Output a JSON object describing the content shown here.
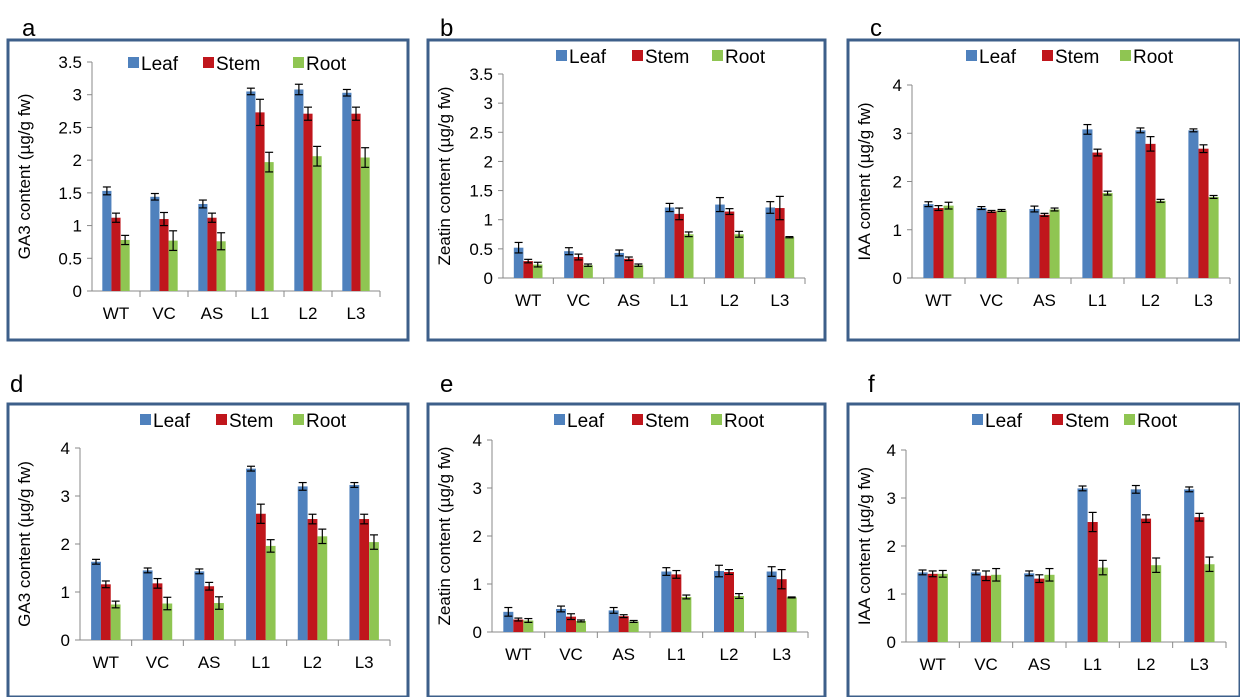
{
  "colors": {
    "Leaf": "#4f81bd",
    "Stem": "#c0161c",
    "Root": "#8fc552",
    "frame": "#3d5f8a"
  },
  "chart_data": [
    {
      "panel": "a",
      "type": "bar",
      "categories": [
        "WT",
        "VC",
        "AS",
        "L1",
        "L2",
        "L3"
      ],
      "ylabel": "GA3  content (µg/g fw)",
      "ylim": [
        0,
        3.5
      ],
      "yticks": [
        "0",
        "0.5",
        "1",
        "1.5",
        "2",
        "2.5",
        "3",
        "3.5"
      ],
      "legend": "top",
      "series": [
        {
          "name": "Leaf",
          "values": [
            1.53,
            1.44,
            1.33,
            3.05,
            3.08,
            3.03
          ],
          "errors": [
            0.06,
            0.05,
            0.06,
            0.05,
            0.08,
            0.05
          ]
        },
        {
          "name": "Stem",
          "values": [
            1.12,
            1.1,
            1.12,
            2.73,
            2.71,
            2.71
          ],
          "errors": [
            0.07,
            0.1,
            0.07,
            0.2,
            0.1,
            0.1
          ]
        },
        {
          "name": "Root",
          "values": [
            0.78,
            0.77,
            0.76,
            1.97,
            2.06,
            2.04
          ],
          "errors": [
            0.07,
            0.15,
            0.13,
            0.15,
            0.15,
            0.15
          ]
        }
      ]
    },
    {
      "panel": "b",
      "type": "bar",
      "categories": [
        "WT",
        "VC",
        "AS",
        "L1",
        "L2",
        "L3"
      ],
      "ylabel": "Zeatin content (µg/g fw)",
      "ylim": [
        0,
        3.5
      ],
      "yticks": [
        "0",
        "0.5",
        "1",
        "1.5",
        "2",
        "2.5",
        "3",
        "3.5"
      ],
      "legend": "top",
      "series": [
        {
          "name": "Leaf",
          "values": [
            0.52,
            0.46,
            0.43,
            1.21,
            1.26,
            1.21
          ],
          "errors": [
            0.09,
            0.06,
            0.05,
            0.07,
            0.12,
            0.1
          ]
        },
        {
          "name": "Stem",
          "values": [
            0.29,
            0.36,
            0.33,
            1.1,
            1.14,
            1.2
          ],
          "errors": [
            0.03,
            0.05,
            0.03,
            0.1,
            0.05,
            0.2
          ]
        },
        {
          "name": "Root",
          "values": [
            0.23,
            0.22,
            0.22,
            0.75,
            0.75,
            0.7
          ],
          "errors": [
            0.04,
            0.02,
            0.02,
            0.04,
            0.05,
            0.01
          ]
        }
      ]
    },
    {
      "panel": "c",
      "type": "bar",
      "categories": [
        "WT",
        "VC",
        "AS",
        "L1",
        "L2",
        "L3"
      ],
      "ylabel": "IAA  content (µg/g fw)",
      "ylim": [
        0,
        4
      ],
      "yticks": [
        "0",
        "1",
        "2",
        "3",
        "4"
      ],
      "legend": "top",
      "series": [
        {
          "name": "Leaf",
          "values": [
            1.53,
            1.45,
            1.43,
            3.08,
            3.06,
            3.06
          ],
          "errors": [
            0.05,
            0.03,
            0.06,
            0.1,
            0.05,
            0.03
          ]
        },
        {
          "name": "Stem",
          "values": [
            1.45,
            1.38,
            1.31,
            2.6,
            2.78,
            2.68
          ],
          "errors": [
            0.05,
            0.02,
            0.03,
            0.07,
            0.15,
            0.08
          ]
        },
        {
          "name": "Root",
          "values": [
            1.5,
            1.4,
            1.42,
            1.76,
            1.6,
            1.68
          ],
          "errors": [
            0.07,
            0.02,
            0.03,
            0.04,
            0.03,
            0.03
          ]
        }
      ]
    },
    {
      "panel": "d",
      "type": "bar",
      "categories": [
        "WT",
        "VC",
        "AS",
        "L1",
        "L2",
        "L3"
      ],
      "ylabel": "GA3  content (µg/g fw)",
      "ylim": [
        0,
        4
      ],
      "yticks": [
        "0",
        "1",
        "2",
        "3",
        "4"
      ],
      "legend": "top",
      "series": [
        {
          "name": "Leaf",
          "values": [
            1.63,
            1.45,
            1.43,
            3.57,
            3.2,
            3.23
          ],
          "errors": [
            0.05,
            0.05,
            0.05,
            0.05,
            0.08,
            0.05
          ]
        },
        {
          "name": "Stem",
          "values": [
            1.16,
            1.18,
            1.12,
            2.63,
            2.52,
            2.52
          ],
          "errors": [
            0.07,
            0.1,
            0.08,
            0.2,
            0.1,
            0.1
          ]
        },
        {
          "name": "Root",
          "values": [
            0.74,
            0.76,
            0.77,
            1.96,
            2.16,
            2.04
          ],
          "errors": [
            0.07,
            0.13,
            0.13,
            0.13,
            0.15,
            0.15
          ]
        }
      ]
    },
    {
      "panel": "e",
      "type": "bar",
      "categories": [
        "WT",
        "VC",
        "AS",
        "L1",
        "L2",
        "L3"
      ],
      "ylabel": "Zeatin content (µg/g fw)",
      "ylim": [
        0,
        4
      ],
      "yticks": [
        "0",
        "1",
        "2",
        "3",
        "4"
      ],
      "legend": "top",
      "series": [
        {
          "name": "Leaf",
          "values": [
            0.42,
            0.48,
            0.45,
            1.26,
            1.27,
            1.26
          ],
          "errors": [
            0.09,
            0.06,
            0.06,
            0.08,
            0.12,
            0.1
          ]
        },
        {
          "name": "Stem",
          "values": [
            0.26,
            0.32,
            0.33,
            1.2,
            1.25,
            1.1
          ],
          "errors": [
            0.03,
            0.06,
            0.03,
            0.08,
            0.05,
            0.2
          ]
        },
        {
          "name": "Root",
          "values": [
            0.24,
            0.23,
            0.22,
            0.73,
            0.75,
            0.72
          ],
          "errors": [
            0.04,
            0.02,
            0.02,
            0.04,
            0.05,
            0.01
          ]
        }
      ]
    },
    {
      "panel": "f",
      "type": "bar",
      "categories": [
        "WT",
        "VC",
        "AS",
        "L1",
        "L2",
        "L3"
      ],
      "ylabel": "IAA  content (µg/g fw)",
      "ylim": [
        0,
        4
      ],
      "yticks": [
        "0",
        "1",
        "2",
        "3",
        "4"
      ],
      "legend": "top",
      "series": [
        {
          "name": "Leaf",
          "values": [
            1.45,
            1.45,
            1.43,
            3.2,
            3.18,
            3.18
          ],
          "errors": [
            0.05,
            0.05,
            0.05,
            0.05,
            0.08,
            0.05
          ]
        },
        {
          "name": "Stem",
          "values": [
            1.42,
            1.38,
            1.32,
            2.5,
            2.57,
            2.6
          ],
          "errors": [
            0.06,
            0.1,
            0.08,
            0.2,
            0.08,
            0.08
          ]
        },
        {
          "name": "Root",
          "values": [
            1.42,
            1.4,
            1.4,
            1.55,
            1.6,
            1.62
          ],
          "errors": [
            0.07,
            0.13,
            0.13,
            0.15,
            0.15,
            0.15
          ]
        }
      ]
    }
  ]
}
